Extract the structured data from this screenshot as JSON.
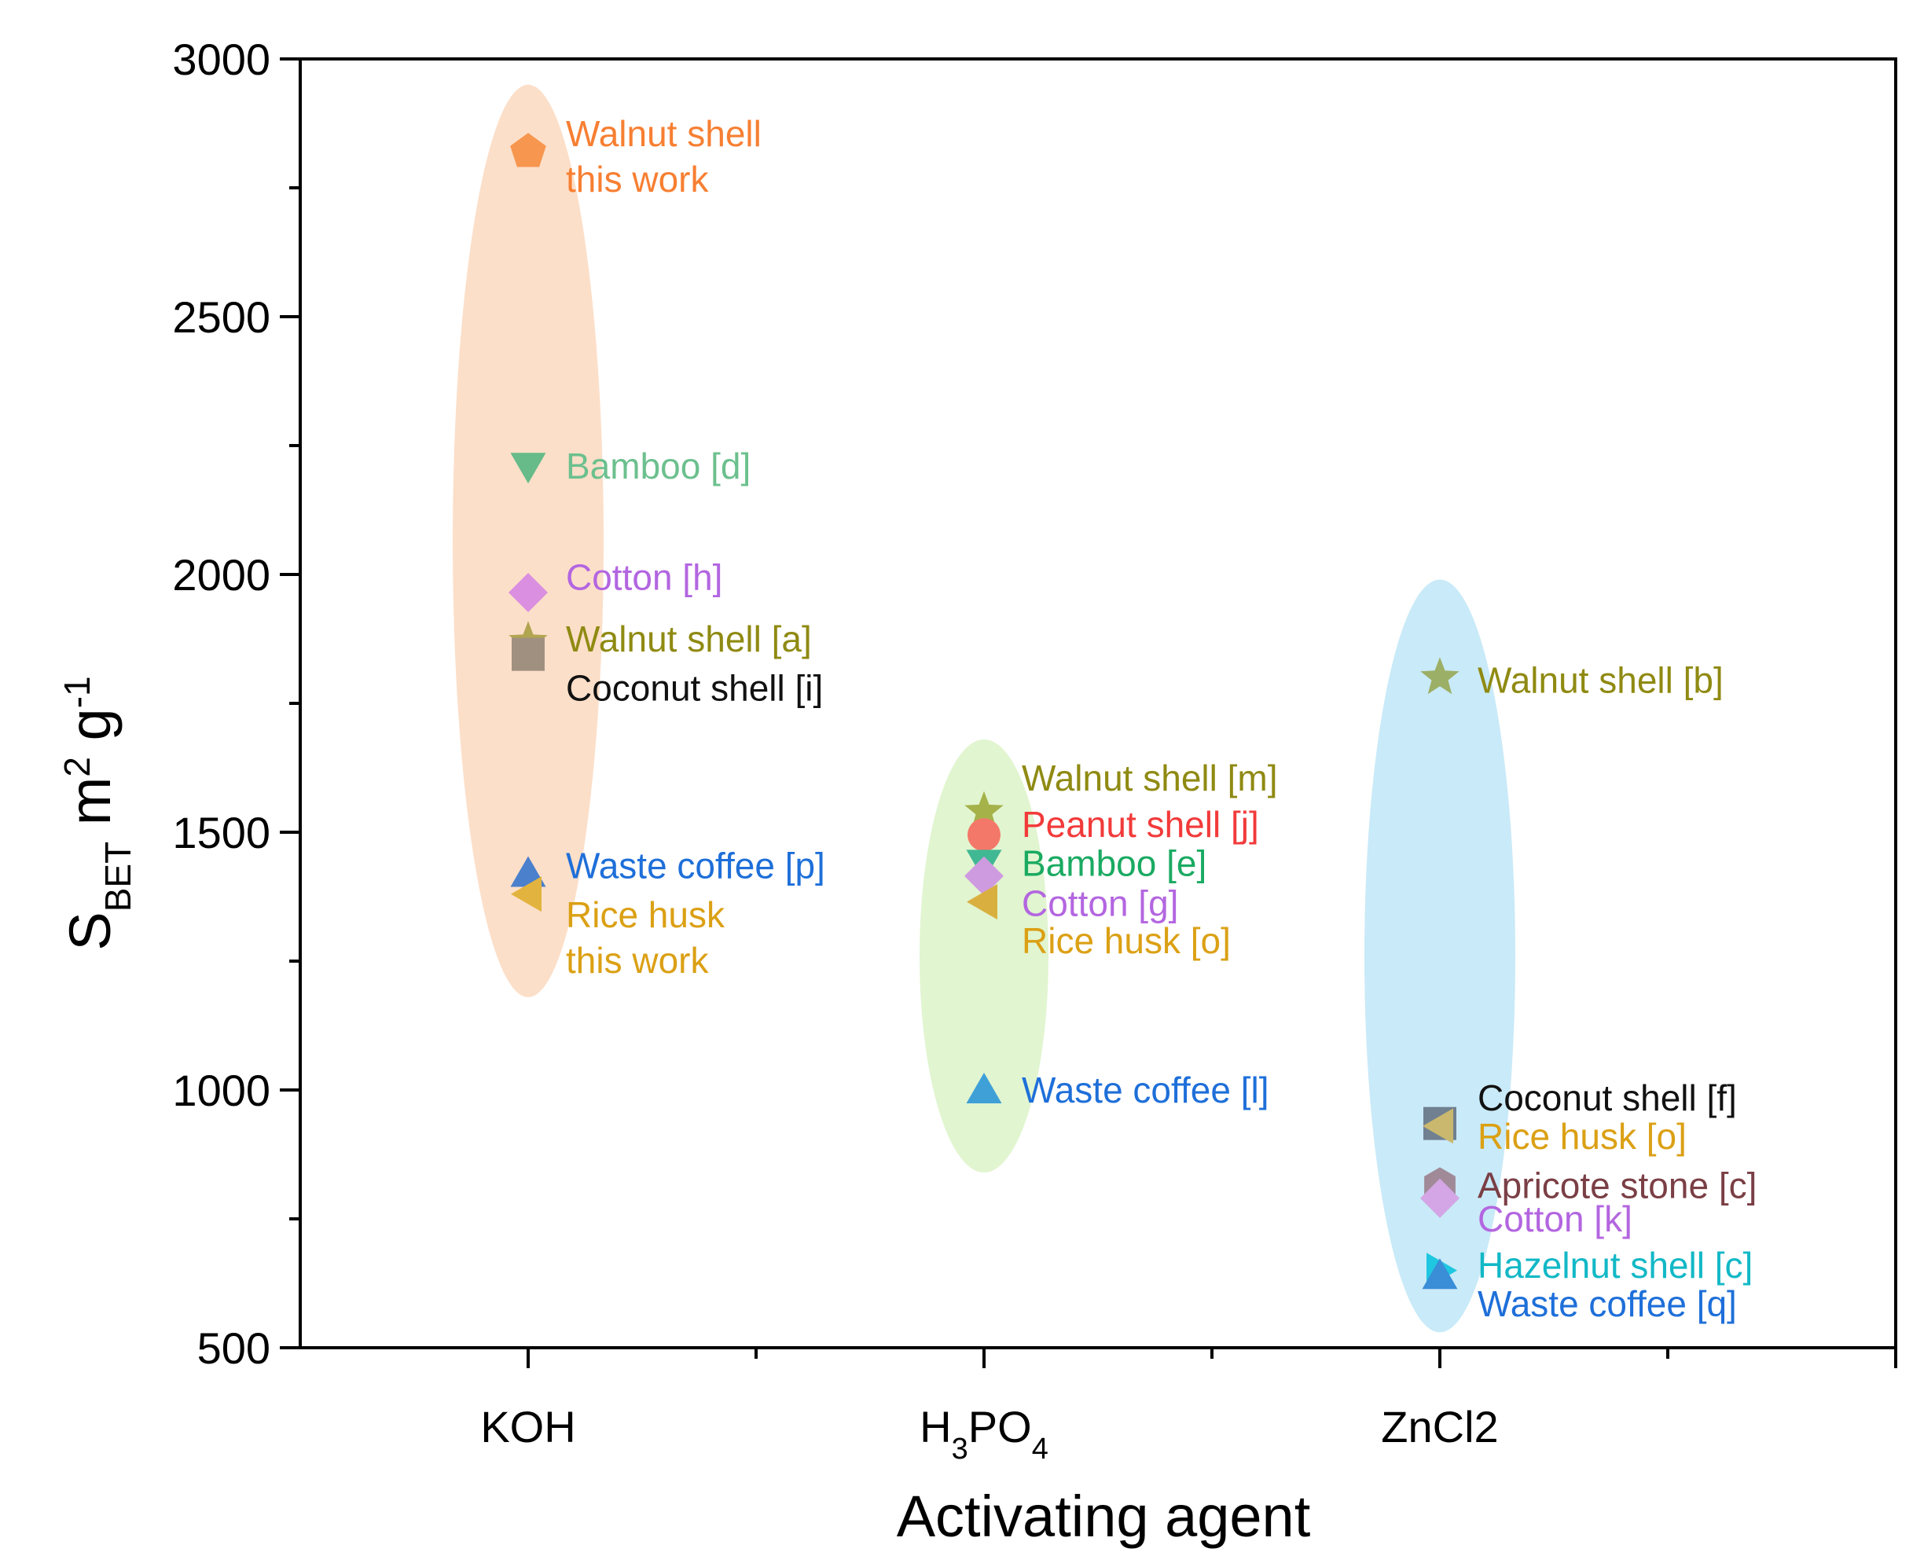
{
  "chart_data": {
    "type": "scatter",
    "title": "",
    "xlabel": "Activating agent",
    "ylabel": {
      "base": "S",
      "sub": "BET",
      "unit": "m",
      "sup1": "2",
      "unit2": "g",
      "sup2": "-1"
    },
    "categories": [
      {
        "key": "KOH",
        "parts": [
          {
            "t": "KOH"
          }
        ]
      },
      {
        "key": "H3PO4",
        "parts": [
          {
            "t": "H"
          },
          {
            "t": "3",
            "sub": true
          },
          {
            "t": "PO"
          },
          {
            "t": "4",
            "sub": true
          }
        ]
      },
      {
        "key": "ZnCl2",
        "parts": [
          {
            "t": "ZnCl2"
          }
        ]
      }
    ],
    "ylim": [
      500,
      3000
    ],
    "yticks": [
      "500",
      "1000",
      "1500",
      "2000",
      "2500",
      "3000"
    ],
    "grid": false,
    "groups": [
      {
        "category": "KOH",
        "color": "#fbd9c0",
        "ymin": 1180,
        "ymax": 2950
      },
      {
        "category": "H3PO4",
        "color": "#dcf3c8",
        "ymin": 840,
        "ymax": 1680
      },
      {
        "category": "ZnCl2",
        "color": "#bfe6f7",
        "ymin": 530,
        "ymax": 1990
      }
    ],
    "points": [
      {
        "category": "KOH",
        "y": 2820,
        "marker": "pentagon",
        "color": "#f7964e",
        "label_lines": [
          "Walnut shell",
          "this work"
        ],
        "label_color": "#f77f32",
        "label_y": 2855
      },
      {
        "category": "KOH",
        "y": 2210,
        "marker": "triangle-down",
        "color": "#66bb88",
        "label_lines": [
          "Bamboo [d]"
        ],
        "label_color": "#6cc08e",
        "label_y": 2210
      },
      {
        "category": "KOH",
        "y": 1965,
        "marker": "diamond",
        "color": "#da8fe0",
        "label_lines": [
          "Cotton [h]"
        ],
        "label_color": "#b366e0",
        "label_y": 1995
      },
      {
        "category": "KOH",
        "y": 1870,
        "marker": "star",
        "color": "#b2a550",
        "label_lines": [
          "Walnut shell [a]"
        ],
        "label_color": "#8f8a12",
        "label_y": 1875
      },
      {
        "category": "KOH",
        "y": 1845,
        "marker": "square",
        "color": "#a09080",
        "label_lines": [
          "Coconut shell [i]"
        ],
        "label_color": "#111111",
        "label_y": 1780
      },
      {
        "category": "KOH",
        "y": 1420,
        "marker": "triangle-up",
        "color": "#4a80cc",
        "label_lines": [
          "Waste coffee [p]"
        ],
        "label_color": "#1e6fd9",
        "label_y": 1435
      },
      {
        "category": "KOH",
        "y": 1380,
        "marker": "triangle-left",
        "color": "#e2b33e",
        "label_lines": [
          "Rice husk",
          "this work"
        ],
        "label_color": "#dba014",
        "label_y": 1340
      },
      {
        "category": "H3PO4",
        "y": 1540,
        "marker": "star",
        "color": "#a5b24a",
        "label_lines": [
          "Walnut shell [m]"
        ],
        "label_color": "#8f8a12",
        "label_y": 1605
      },
      {
        "category": "H3PO4",
        "y": 1495,
        "marker": "circle",
        "color": "#f4786a",
        "label_lines": [
          "Peanut shell [j]"
        ],
        "label_color": "#f23a3a",
        "label_y": 1515
      },
      {
        "category": "H3PO4",
        "y": 1440,
        "marker": "triangle-down",
        "color": "#40b893",
        "label_lines": [
          "Bamboo [e]"
        ],
        "label_color": "#1aaa62",
        "label_y": 1440
      },
      {
        "category": "H3PO4",
        "y": 1415,
        "marker": "diamond",
        "color": "#cf9be0",
        "label_lines": [
          "Cotton [g]"
        ],
        "label_color": "#b366e0",
        "label_y": 1362
      },
      {
        "category": "H3PO4",
        "y": 1365,
        "marker": "triangle-left",
        "color": "#d9b040",
        "label_lines": [
          "Rice husk [o]"
        ],
        "label_color": "#dba014",
        "label_y": 1290
      },
      {
        "category": "H3PO4",
        "y": 1000,
        "marker": "triangle-up",
        "color": "#3fa0d8",
        "label_lines": [
          "Waste coffee [l]"
        ],
        "label_color": "#1e6fd9",
        "label_y": 1000
      },
      {
        "category": "ZnCl2",
        "y": 1800,
        "marker": "star",
        "color": "#9caf66",
        "label_lines": [
          "Walnut shell [b]"
        ],
        "label_color": "#8f8a12",
        "label_y": 1795
      },
      {
        "category": "ZnCl2",
        "y": 935,
        "marker": "square",
        "color": "#708090",
        "label_lines": [
          "Coconut shell [f]"
        ],
        "label_color": "#111111",
        "label_y": 985
      },
      {
        "category": "ZnCl2",
        "y": 930,
        "marker": "triangle-left",
        "color": "#c9b86e",
        "label_lines": [
          "Rice husk [o]"
        ],
        "label_color": "#dba014",
        "label_y": 910
      },
      {
        "category": "ZnCl2",
        "y": 815,
        "marker": "hexagon",
        "color": "#a08a98",
        "label_lines": [
          "Apricote stone [c]"
        ],
        "label_color": "#7a3f45",
        "label_y": 815
      },
      {
        "category": "ZnCl2",
        "y": 790,
        "marker": "diamond",
        "color": "#d4a6e6",
        "label_lines": [
          "Cotton [k]"
        ],
        "label_color": "#b366e0",
        "label_y": 750
      },
      {
        "category": "ZnCl2",
        "y": 650,
        "marker": "triangle-right",
        "color": "#1fc7e0",
        "label_lines": [
          "Hazelnut shell [c]"
        ],
        "label_color": "#12b8c6",
        "label_y": 660
      },
      {
        "category": "ZnCl2",
        "y": 640,
        "marker": "triangle-up",
        "color": "#3a8ed8",
        "label_lines": [
          "Waste coffee [q]"
        ],
        "label_color": "#1e6fd9",
        "label_y": 585
      }
    ]
  }
}
